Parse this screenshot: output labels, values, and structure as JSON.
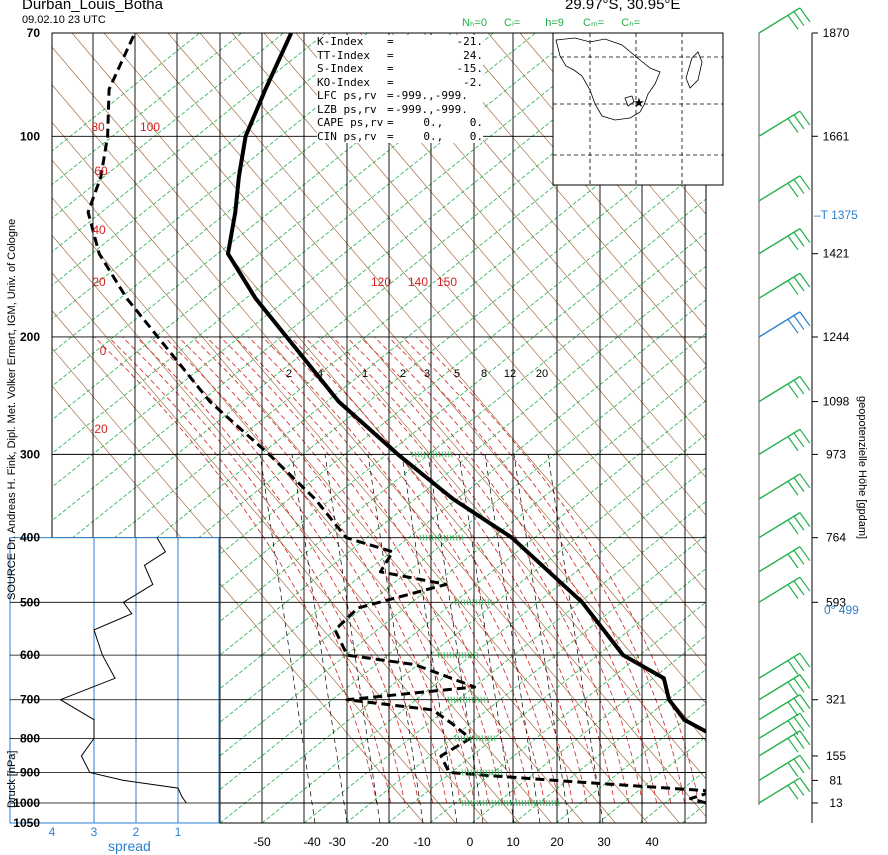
{
  "header": {
    "station": "Durban_Louis_Botha",
    "datetime": "09.02.10  23 UTC",
    "coords": "29.97°S, 30.95°E",
    "cloud_codes": [
      "Nₕ=0",
      "Cₗ=",
      "h=9",
      "Cₘ=",
      "Cₕ="
    ]
  },
  "indices": [
    {
      "label": "K-Index",
      "sep": "=",
      "value": "-21."
    },
    {
      "label": "TT-Index",
      "sep": "=",
      "value": "24."
    },
    {
      "label": "S-Index",
      "sep": "=",
      "value": "-15."
    },
    {
      "label": "KO-Index",
      "sep": "=",
      "value": "-2."
    },
    {
      "label": "LFC  ps,rv",
      "sep": "=",
      "value": "-999.,-999."
    },
    {
      "label": "LZB  ps,rv",
      "sep": "=",
      "value": "-999.,-999."
    },
    {
      "label": "CAPE ps,rv",
      "sep": "=",
      "value": "0.,    0."
    },
    {
      "label": "CIN  ps,rv",
      "sep": "=",
      "value": "0.,    0."
    }
  ],
  "side_labels": {
    "left_credit": "SOURCE Dr. Andreas H. Fink, Dipl. Met. Volker Ermert, IGM, Univ. of Cologne",
    "left_axis": "Druck [hPa]",
    "right_axis": "geopotenzielle Höhe [gpdam]",
    "spread": "spread"
  },
  "colors": {
    "sounding": "#000000",
    "dry_adiabat": "#9a5a28",
    "moist_adiabat": "#d42020",
    "green_lines": "#22b04a",
    "blue": "#2a7fd0",
    "mixing_ratio": "#000000"
  },
  "chart_data": {
    "type": "line",
    "title": "",
    "xlabel": "",
    "ylabel": "Druck [hPa]",
    "temp_ticks": [
      -50,
      -40,
      -30,
      -20,
      -10,
      0,
      10,
      20,
      30,
      40
    ],
    "pressure_ticks": [
      70,
      100,
      200,
      300,
      400,
      500,
      600,
      700,
      800,
      900,
      1000,
      1050
    ],
    "spread_ticks": [
      4,
      3,
      2,
      1
    ],
    "mixing_ratio_labels": [
      "2",
      "4",
      "1",
      "2",
      "3",
      "5",
      "8",
      "12",
      "20"
    ],
    "red_theta_labels": [
      "80",
      "100",
      "60",
      "40",
      "20",
      "0",
      "-20",
      "120",
      "140",
      "150"
    ],
    "height_labels": [
      {
        "p": 70,
        "h": "1870"
      },
      {
        "p": 100,
        "h": "1661"
      },
      {
        "p": 150,
        "h": "1421"
      },
      {
        "p": 200,
        "h": "1244"
      },
      {
        "p": 250,
        "h": "1098"
      },
      {
        "p": 300,
        "h": "973"
      },
      {
        "p": 400,
        "h": "764"
      },
      {
        "p": 500,
        "h": "593"
      },
      {
        "p": 700,
        "h": "321"
      },
      {
        "p": 850,
        "h": "155"
      },
      {
        "p": 925,
        "h": "81"
      },
      {
        "p": 1000,
        "h": "13"
      }
    ],
    "tropopause": {
      "label": "T",
      "value": "1375"
    },
    "freezing_level": {
      "label": "0°",
      "value": "499"
    },
    "temperature": [
      {
        "p": 1000,
        "t": 25
      },
      {
        "p": 985,
        "t": 24
      },
      {
        "p": 960,
        "t": 23
      },
      {
        "p": 930,
        "t": 26
      },
      {
        "p": 900,
        "t": 27
      },
      {
        "p": 850,
        "t": 23
      },
      {
        "p": 800,
        "t": 18
      },
      {
        "p": 750,
        "t": 13
      },
      {
        "p": 700,
        "t": 10
      },
      {
        "p": 650,
        "t": 8
      },
      {
        "p": 600,
        "t": 2
      },
      {
        "p": 500,
        "t": -6
      },
      {
        "p": 400,
        "t": -18
      },
      {
        "p": 350,
        "t": -27
      },
      {
        "p": 300,
        "t": -36
      },
      {
        "p": 250,
        "t": -46
      },
      {
        "p": 200,
        "t": -56
      },
      {
        "p": 175,
        "t": -62
      },
      {
        "p": 150,
        "t": -68
      },
      {
        "p": 130,
        "t": -70
      },
      {
        "p": 115,
        "t": -72
      },
      {
        "p": 100,
        "t": -74
      },
      {
        "p": 85,
        "t": -75
      },
      {
        "p": 70,
        "t": -76
      }
    ],
    "dewpoint": [
      {
        "p": 1000,
        "t": 21
      },
      {
        "p": 985,
        "t": 19
      },
      {
        "p": 960,
        "t": 21
      },
      {
        "p": 925,
        "t": 3
      },
      {
        "p": 900,
        "t": -9
      },
      {
        "p": 850,
        "t": -11
      },
      {
        "p": 800,
        "t": -9
      },
      {
        "p": 760,
        "t": -12
      },
      {
        "p": 725,
        "t": -15
      },
      {
        "p": 700,
        "t": -25
      },
      {
        "p": 670,
        "t": -12
      },
      {
        "p": 620,
        "t": -20
      },
      {
        "p": 600,
        "t": -28
      },
      {
        "p": 550,
        "t": -31
      },
      {
        "p": 510,
        "t": -30
      },
      {
        "p": 470,
        "t": -22
      },
      {
        "p": 450,
        "t": -30
      },
      {
        "p": 420,
        "t": -30
      },
      {
        "p": 400,
        "t": -36
      },
      {
        "p": 350,
        "t": -42
      },
      {
        "p": 300,
        "t": -50
      },
      {
        "p": 250,
        "t": -60
      },
      {
        "p": 200,
        "t": -70
      },
      {
        "p": 175,
        "t": -76
      },
      {
        "p": 150,
        "t": -82
      },
      {
        "p": 130,
        "t": -86
      },
      {
        "p": 115,
        "t": -87
      },
      {
        "p": 100,
        "t": -89
      },
      {
        "p": 85,
        "t": -92
      },
      {
        "p": 70,
        "t": -93
      }
    ],
    "spread": [
      {
        "p": 1000,
        "s": 0.8
      },
      {
        "p": 980,
        "s": 0.9
      },
      {
        "p": 950,
        "s": 1.0
      },
      {
        "p": 925,
        "s": 2.3
      },
      {
        "p": 900,
        "s": 3.1
      },
      {
        "p": 850,
        "s": 3.3
      },
      {
        "p": 800,
        "s": 3.0
      },
      {
        "p": 750,
        "s": 3.0
      },
      {
        "p": 700,
        "s": 3.8
      },
      {
        "p": 650,
        "s": 2.5
      },
      {
        "p": 600,
        "s": 2.8
      },
      {
        "p": 550,
        "s": 3.0
      },
      {
        "p": 520,
        "s": 2.1
      },
      {
        "p": 500,
        "s": 2.3
      },
      {
        "p": 470,
        "s": 1.6
      },
      {
        "p": 440,
        "s": 1.8
      },
      {
        "p": 420,
        "s": 1.3
      },
      {
        "p": 400,
        "s": 1.5
      }
    ],
    "wind_barbs": [
      {
        "p": 1000,
        "color": "green"
      },
      {
        "p": 925,
        "color": "green"
      },
      {
        "p": 850,
        "color": "green"
      },
      {
        "p": 800,
        "color": "green"
      },
      {
        "p": 750,
        "color": "green"
      },
      {
        "p": 700,
        "color": "green"
      },
      {
        "p": 650,
        "color": "green"
      },
      {
        "p": 500,
        "color": "green"
      },
      {
        "p": 450,
        "color": "green"
      },
      {
        "p": 400,
        "color": "green"
      },
      {
        "p": 350,
        "color": "green"
      },
      {
        "p": 300,
        "color": "green"
      },
      {
        "p": 250,
        "color": "green"
      },
      {
        "p": 200,
        "color": "blue"
      },
      {
        "p": 175,
        "color": "green"
      },
      {
        "p": 150,
        "color": "green"
      },
      {
        "p": 125,
        "color": "green"
      },
      {
        "p": 100,
        "color": "green"
      },
      {
        "p": 70,
        "color": "green"
      }
    ]
  }
}
